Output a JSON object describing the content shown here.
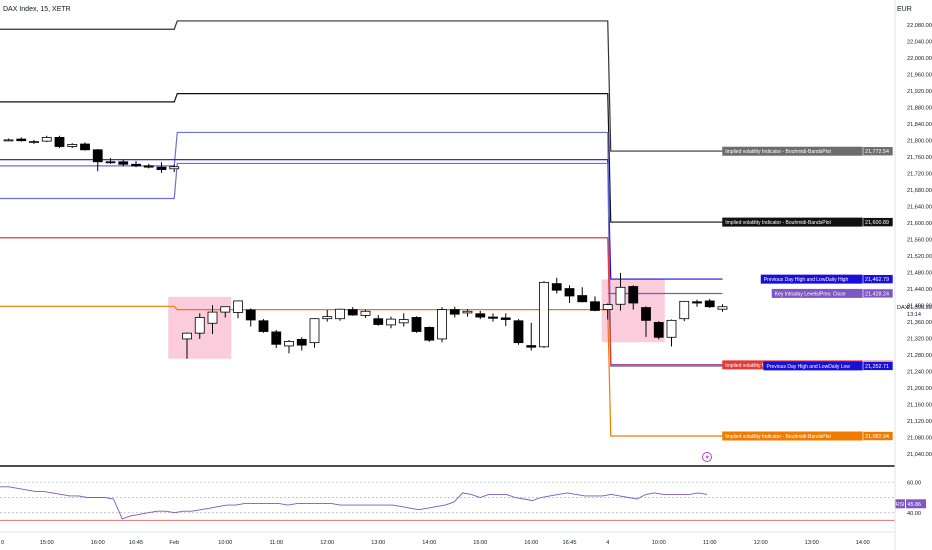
{
  "header": {
    "symbol": "DAX Index, 15, XETR",
    "currency": "EUR"
  },
  "colors": {
    "bull": "#ffffff",
    "bear": "#000000",
    "wick": "#000000",
    "band_outer": "#333333",
    "band_mid": "#111111",
    "band_inner": "#6f6fd8",
    "pdhl": "#1a0fd8",
    "key_close": "#7e57c2",
    "red": "#e53935",
    "orange": "#ef7c00",
    "rsi_line": "#7e57c2",
    "rsi_lower": "#e57373",
    "zone": "#f8bbd0"
  },
  "chart_data": [
    {
      "type": "candlestick",
      "title": "",
      "y_axis": {
        "unit": "EUR",
        "ylim": [
          21020,
          22100
        ],
        "tick_labels": [
          "22,080.00",
          "22,040.00",
          "22,000.00",
          "21,960.00",
          "21,920.00",
          "21,880.00",
          "21,840.00",
          "21,800.00",
          "21,760.00",
          "21,720.00",
          "21,680.00",
          "21,640.00",
          "21,600.00",
          "21,560.00",
          "21,520.00",
          "21,480.00",
          "21,440.00",
          "21,400.00",
          "21,360.00",
          "21,320.00",
          "21,280.00",
          "21,240.00",
          "21,200.00",
          "21,160.00",
          "21,120.00",
          "21,080.00",
          "21,040.00"
        ],
        "tick_values": [
          22080,
          22040,
          22000,
          21960,
          21920,
          21880,
          21840,
          21800,
          21760,
          21720,
          21680,
          21640,
          21600,
          21560,
          21520,
          21480,
          21440,
          21400,
          21360,
          21320,
          21280,
          21240,
          21200,
          21160,
          21120,
          21080,
          21040
        ]
      },
      "x_axis": {
        "tick_labels": [
          "0",
          "15:00",
          "16:00",
          "16:45",
          "Feb",
          "10:00",
          "11:00",
          "12:00",
          "13:00",
          "14:00",
          "15:00",
          "16:00",
          "16:45",
          "4",
          "10:00",
          "11:00",
          "12:00",
          "13:00",
          "14:00"
        ],
        "tick_bars": [
          0,
          3,
          7,
          10,
          13,
          17,
          21,
          25,
          29,
          33,
          37,
          41,
          44,
          47,
          51,
          55,
          59,
          63,
          67
        ]
      },
      "grid": false,
      "candles": [
        {
          "o": 21800,
          "h": 21803,
          "l": 21797,
          "c": 21800
        },
        {
          "o": 21802,
          "h": 21806,
          "l": 21796,
          "c": 21798
        },
        {
          "o": 21796,
          "h": 21800,
          "l": 21790,
          "c": 21796
        },
        {
          "o": 21797,
          "h": 21810,
          "l": 21795,
          "c": 21806
        },
        {
          "o": 21806,
          "h": 21810,
          "l": 21780,
          "c": 21784
        },
        {
          "o": 21784,
          "h": 21792,
          "l": 21780,
          "c": 21789
        },
        {
          "o": 21790,
          "h": 21794,
          "l": 21774,
          "c": 21776
        },
        {
          "o": 21776,
          "h": 21778,
          "l": 21724,
          "c": 21747
        },
        {
          "o": 21747,
          "h": 21756,
          "l": 21742,
          "c": 21745
        },
        {
          "o": 21747,
          "h": 21752,
          "l": 21736,
          "c": 21741
        },
        {
          "o": 21741,
          "h": 21749,
          "l": 21734,
          "c": 21737
        },
        {
          "o": 21737,
          "h": 21742,
          "l": 21731,
          "c": 21734
        },
        {
          "o": 21734,
          "h": 21746,
          "l": 21720,
          "c": 21728
        },
        {
          "o": 21730,
          "h": 21740,
          "l": 21722,
          "c": 21735
        },
        {
          "o": 21318,
          "h": 21333,
          "l": 21270,
          "c": 21332
        },
        {
          "o": 21332,
          "h": 21380,
          "l": 21318,
          "c": 21370
        },
        {
          "o": 21356,
          "h": 21400,
          "l": 21330,
          "c": 21383
        },
        {
          "o": 21383,
          "h": 21396,
          "l": 21370,
          "c": 21396
        },
        {
          "o": 21382,
          "h": 21410,
          "l": 21368,
          "c": 21410
        },
        {
          "o": 21388,
          "h": 21392,
          "l": 21348,
          "c": 21364
        },
        {
          "o": 21362,
          "h": 21366,
          "l": 21333,
          "c": 21336
        },
        {
          "o": 21335,
          "h": 21340,
          "l": 21296,
          "c": 21305
        },
        {
          "o": 21301,
          "h": 21315,
          "l": 21283,
          "c": 21312
        },
        {
          "o": 21317,
          "h": 21322,
          "l": 21290,
          "c": 21303
        },
        {
          "o": 21309,
          "h": 21368,
          "l": 21297,
          "c": 21367
        },
        {
          "o": 21367,
          "h": 21388,
          "l": 21360,
          "c": 21372
        },
        {
          "o": 21367,
          "h": 21391,
          "l": 21362,
          "c": 21390
        },
        {
          "o": 21389,
          "h": 21395,
          "l": 21374,
          "c": 21376
        },
        {
          "o": 21375,
          "h": 21389,
          "l": 21369,
          "c": 21385
        },
        {
          "o": 21367,
          "h": 21376,
          "l": 21350,
          "c": 21353
        },
        {
          "o": 21352,
          "h": 21372,
          "l": 21344,
          "c": 21366
        },
        {
          "o": 21357,
          "h": 21380,
          "l": 21348,
          "c": 21365
        },
        {
          "o": 21370,
          "h": 21373,
          "l": 21333,
          "c": 21336
        },
        {
          "o": 21346,
          "h": 21348,
          "l": 21311,
          "c": 21315
        },
        {
          "o": 21318,
          "h": 21395,
          "l": 21310,
          "c": 21389
        },
        {
          "o": 21389,
          "h": 21396,
          "l": 21370,
          "c": 21378
        },
        {
          "o": 21381,
          "h": 21390,
          "l": 21372,
          "c": 21385
        },
        {
          "o": 21379,
          "h": 21386,
          "l": 21366,
          "c": 21371
        },
        {
          "o": 21371,
          "h": 21380,
          "l": 21360,
          "c": 21368
        },
        {
          "o": 21369,
          "h": 21380,
          "l": 21349,
          "c": 21365
        },
        {
          "o": 21362,
          "h": 21366,
          "l": 21304,
          "c": 21309
        },
        {
          "o": 21302,
          "h": 21357,
          "l": 21290,
          "c": 21298
        },
        {
          "o": 21299,
          "h": 21458,
          "l": 21296,
          "c": 21455
        },
        {
          "o": 21452,
          "h": 21466,
          "l": 21428,
          "c": 21436
        },
        {
          "o": 21440,
          "h": 21448,
          "l": 21405,
          "c": 21422
        },
        {
          "o": 21423,
          "h": 21443,
          "l": 21407,
          "c": 21408
        },
        {
          "o": 21408,
          "h": 21421,
          "l": 21385,
          "c": 21387
        },
        {
          "o": 21389,
          "h": 21404,
          "l": 21365,
          "c": 21401
        },
        {
          "o": 21402,
          "h": 21478,
          "l": 21387,
          "c": 21443
        },
        {
          "o": 21445,
          "h": 21448,
          "l": 21389,
          "c": 21405
        },
        {
          "o": 21394,
          "h": 21397,
          "l": 21323,
          "c": 21363
        },
        {
          "o": 21358,
          "h": 21361,
          "l": 21317,
          "c": 21322
        },
        {
          "o": 21322,
          "h": 21365,
          "l": 21300,
          "c": 21363
        },
        {
          "o": 21367,
          "h": 21410,
          "l": 21361,
          "c": 21409
        },
        {
          "o": 21408,
          "h": 21413,
          "l": 21396,
          "c": 21405
        },
        {
          "o": 21410,
          "h": 21415,
          "l": 21393,
          "c": 21396
        },
        {
          "o": 21390,
          "h": 21402,
          "l": 21384,
          "c": 21396
        }
      ],
      "bands": [
        {
          "name": "implied-vol-outer-upper",
          "color": "#333333",
          "segments": [
            [
              0,
              13,
              22068
            ],
            [
              13,
              47,
              22088
            ],
            [
              47,
              56,
              21773
            ]
          ]
        },
        {
          "name": "implied-vol-mid-upper",
          "color": "#111111",
          "segments": [
            [
              0,
              13,
              21892
            ],
            [
              13,
              47,
              21912
            ],
            [
              47,
              56,
              21601
            ]
          ]
        },
        {
          "name": "implied-vol-inner-upper",
          "color": "#6f6fd8",
          "segments": [
            [
              0,
              13,
              21737
            ],
            [
              13,
              47,
              21818
            ],
            [
              47,
              56,
              21256
            ]
          ]
        },
        {
          "name": "pdhl-upper",
          "color": "#1a0fd8",
          "segments": [
            [
              0,
              13,
              21752
            ],
            [
              13,
              47,
              21752
            ],
            [
              47,
              56,
              21463
            ]
          ]
        },
        {
          "name": "implied-vol-inner-lower",
          "color": "#6f6fd8",
          "segments": [
            [
              0,
              13,
              21658
            ],
            [
              13,
              47,
              21743
            ],
            [
              47,
              56,
              21252
            ]
          ]
        },
        {
          "name": "red-level",
          "color": "#e53935",
          "segments": [
            [
              0,
              13,
              21563
            ],
            [
              13,
              47,
              21563
            ],
            [
              47,
              56,
              21255
            ]
          ]
        },
        {
          "name": "orange-level",
          "color": "#ef7c00",
          "segments": [
            [
              0,
              13,
              21397
            ],
            [
              13,
              47,
              21389
            ],
            [
              47,
              56,
              21083
            ]
          ]
        },
        {
          "name": "key-intraday-close",
          "color": "#7e57c2",
          "segments": [
            [
              47,
              56,
              21428
            ]
          ]
        }
      ],
      "zones": [
        {
          "from_bar": 13,
          "to_bar": 17,
          "top": 21420,
          "bottom": 21270
        },
        {
          "from_bar": 47,
          "to_bar": 51,
          "top": 21462,
          "bottom": 21310
        }
      ],
      "labels": [
        {
          "text": "Implied volatility Indicator - Bouhmidi-BandsPlot",
          "value_text": "21,772.54",
          "value": 21772.54,
          "bg": "#6d6d6d"
        },
        {
          "text": "Implied volatility Indicator - Bouhmidi-BandsPlot",
          "value_text": "21,600.89",
          "value": 21600.89,
          "bg": "#111111"
        },
        {
          "text": "Previous Day High and LowDaily High",
          "value_text": "21,462.79",
          "value": 21462.79,
          "bg": "#1a0fd8"
        },
        {
          "text": "Key Intraday Levels/Prev. Close",
          "value_text": "21,428.24",
          "value": 21428.24,
          "bg": "#7e57c2"
        },
        {
          "text": "Implied volatility Indicator - Bouhmidi-BandsPlot",
          "value_text": "21,255.19",
          "value": 21255.19,
          "bg": "#e53935"
        },
        {
          "text": "Previous Day High and LowDaily Low",
          "value_text": "21,252.71",
          "value": 21252.71,
          "bg": "#1a0fd8"
        },
        {
          "text": "Implied volatility Indicator - Bouhmidi-BandsPlot",
          "value_text": "21,082.94",
          "value": 21082.94,
          "bg": "#ef7c00"
        }
      ],
      "price_marker": {
        "symbol": "DAX",
        "price_text": "21,396.33",
        "time_text": "13:14",
        "value": 21396.33
      }
    },
    {
      "type": "line",
      "title": "",
      "series": [
        {
          "name": "RSI",
          "values": [
            57,
            57,
            56,
            55,
            54,
            54,
            53,
            52,
            51,
            51,
            50,
            50,
            50,
            49,
            36,
            38,
            39,
            40,
            41,
            41,
            40,
            41,
            41,
            42,
            43,
            44,
            45,
            45,
            46,
            46,
            46,
            46,
            46,
            45,
            46,
            46,
            46,
            46,
            46,
            45,
            45,
            45,
            45,
            45,
            45,
            45,
            44,
            43,
            42,
            43,
            44,
            45,
            47,
            53,
            52,
            50,
            52,
            52,
            52,
            50,
            49,
            48,
            50,
            51,
            52,
            53,
            52,
            51,
            51,
            51,
            52,
            51,
            50,
            49,
            52,
            53,
            52,
            52,
            52,
            52,
            53,
            52
          ]
        }
      ],
      "ylim": [
        30,
        68
      ],
      "levels": [
        {
          "value": 60,
          "label": "60.00"
        },
        {
          "value": 50,
          "label": ""
        },
        {
          "value": 40,
          "label": "40.00"
        }
      ],
      "lower_level_value": 35,
      "current": {
        "label": "RSI",
        "value_text": "45.86",
        "value": 45.86
      }
    }
  ]
}
